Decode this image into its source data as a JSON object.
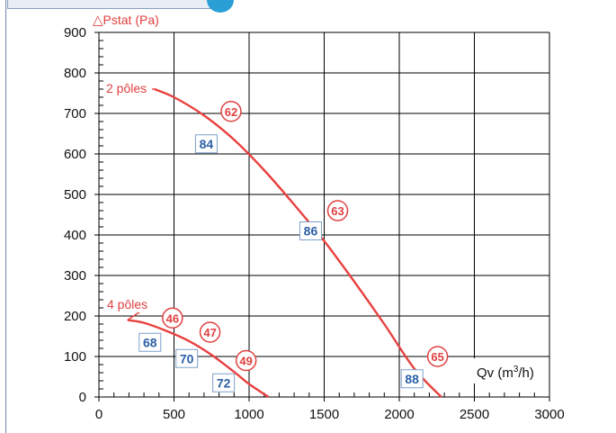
{
  "chart_data": {
    "type": "line",
    "ylabel": "Pstat (Pa)",
    "ylabel_symbol": "△",
    "xlabel": "Qv (m3/h)",
    "xlim": [
      0,
      3000
    ],
    "ylim": [
      0,
      900
    ],
    "x_ticks": [
      "0",
      "500",
      "1000",
      "1500",
      "2000",
      "2500",
      "3000"
    ],
    "y_ticks": [
      "0",
      "100",
      "200",
      "300",
      "400",
      "500",
      "600",
      "700",
      "800",
      "900"
    ],
    "grid": true,
    "series": [
      {
        "name": "2 pôles",
        "x": [
          370,
          500,
          700,
          900,
          1100,
          1300,
          1500,
          1700,
          1900,
          2100,
          2280
        ],
        "y": [
          760,
          740,
          695,
          635,
          560,
          475,
          385,
          285,
          180,
          70,
          0
        ]
      },
      {
        "name": "4 pôles",
        "x": [
          190,
          300,
          450,
          600,
          750,
          900,
          1000,
          1130
        ],
        "y": [
          190,
          183,
          163,
          138,
          104,
          62,
          32,
          0
        ]
      }
    ],
    "circle_labels": [
      {
        "text": "62",
        "x": 880,
        "y": 705
      },
      {
        "text": "63",
        "x": 1590,
        "y": 460
      },
      {
        "text": "65",
        "x": 2255,
        "y": 100
      },
      {
        "text": "46",
        "x": 490,
        "y": 195
      },
      {
        "text": "47",
        "x": 740,
        "y": 160
      },
      {
        "text": "49",
        "x": 980,
        "y": 90
      }
    ],
    "box_labels": [
      {
        "text": "84",
        "x": 715,
        "y": 625
      },
      {
        "text": "86",
        "x": 1410,
        "y": 410
      },
      {
        "text": "88",
        "x": 2085,
        "y": 45
      },
      {
        "text": "68",
        "x": 340,
        "y": 135
      },
      {
        "text": "70",
        "x": 585,
        "y": 95
      },
      {
        "text": "72",
        "x": 830,
        "y": 35
      }
    ],
    "colors": {
      "curve": "#e8413f",
      "circle": "#e04040",
      "box_text": "#2b5fa6",
      "box_border": "#7e9fc9",
      "grid": "#000000"
    }
  }
}
